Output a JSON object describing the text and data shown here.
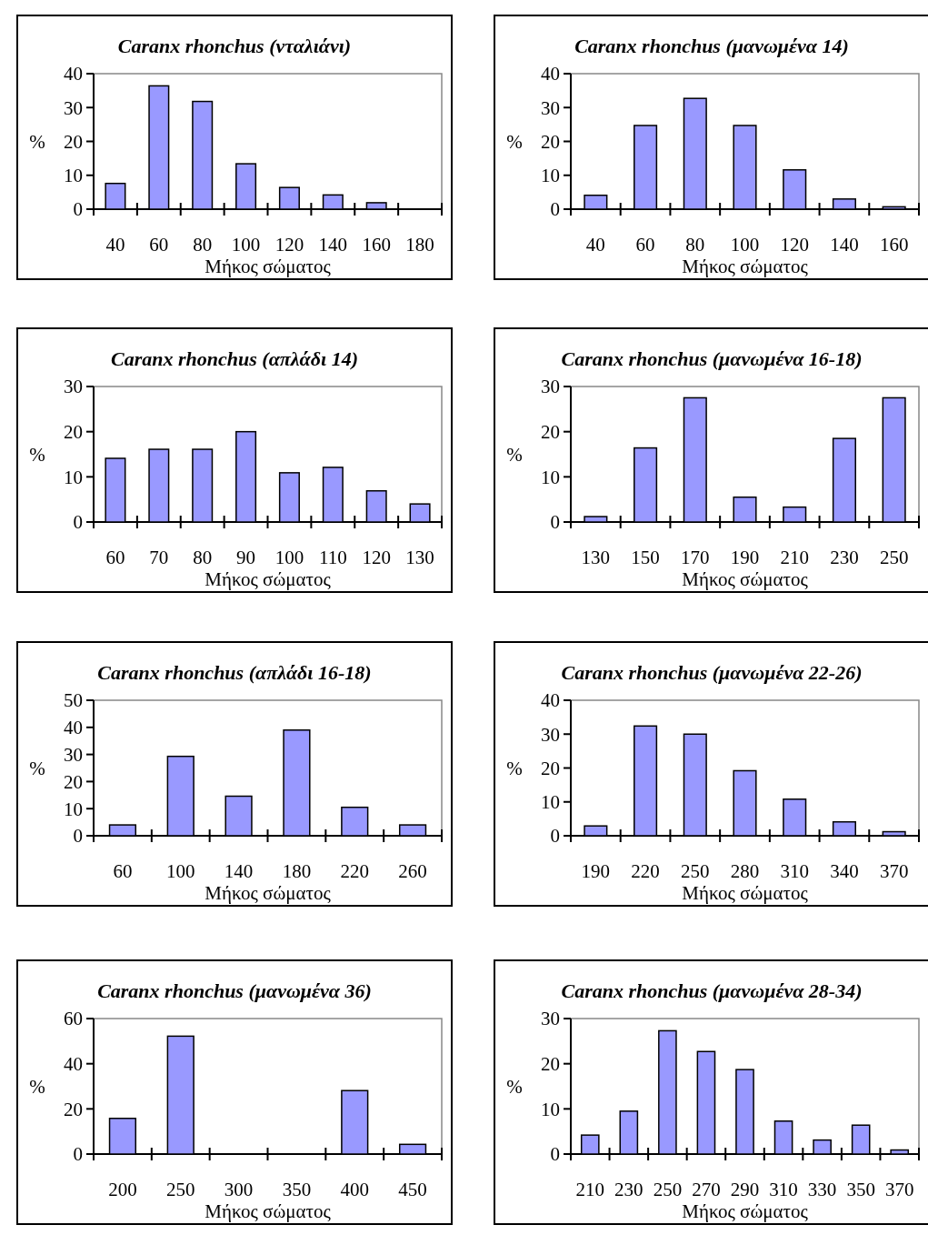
{
  "chart_data": [
    {
      "type": "bar",
      "title": "Caranx rhonchus (νταλιάνι)",
      "xlabel": "Μήκος σώματος",
      "ylabel": "%",
      "categories": [
        "40",
        "60",
        "80",
        "100",
        "120",
        "140",
        "160",
        "180"
      ],
      "values": [
        7.6,
        36.4,
        31.8,
        13.4,
        6.4,
        4.2,
        1.9,
        0
      ],
      "color": "#9999ff",
      "ylim": [
        0,
        40
      ],
      "yticks": [
        0,
        10,
        20,
        30,
        40
      ]
    },
    {
      "type": "bar",
      "title": "Caranx rhonchus (μανωμένα 14)",
      "xlabel": "Μήκος σώματος",
      "ylabel": "%",
      "categories": [
        "40",
        "60",
        "80",
        "100",
        "120",
        "140",
        "160"
      ],
      "values": [
        4.1,
        24.7,
        32.7,
        24.7,
        11.6,
        3.0,
        0.7
      ],
      "color": "#9999ff",
      "ylim": [
        0,
        40
      ],
      "yticks": [
        0,
        10,
        20,
        30,
        40
      ]
    },
    {
      "type": "bar",
      "title": "Caranx rhonchus (απλάδι 14)",
      "xlabel": "Μήκος σώματος",
      "ylabel": "%",
      "categories": [
        "60",
        "70",
        "80",
        "90",
        "100",
        "110",
        "120",
        "130"
      ],
      "values": [
        14.1,
        16.1,
        16.1,
        20,
        10.9,
        12.1,
        6.9,
        4.0
      ],
      "color": "#9999ff",
      "ylim": [
        0,
        30
      ],
      "yticks": [
        0,
        10,
        20,
        30
      ]
    },
    {
      "type": "bar",
      "title": "Caranx rhonchus (μανωμένα 16-18)",
      "xlabel": "Μήκος σώματος",
      "ylabel": "%",
      "categories": [
        "130",
        "150",
        "170",
        "190",
        "210",
        "230",
        "250"
      ],
      "values": [
        1.2,
        16.4,
        27.5,
        5.5,
        3.3,
        18.5,
        27.5
      ],
      "color": "#9999ff",
      "ylim": [
        0,
        30
      ],
      "yticks": [
        0,
        10,
        20,
        30
      ]
    },
    {
      "type": "bar",
      "title": "Caranx rhonchus (απλάδι 16-18)",
      "xlabel": "Μήκος σώματος",
      "ylabel": "%",
      "categories": [
        "60",
        "100",
        "140",
        "180",
        "220",
        "260"
      ],
      "values": [
        4.0,
        29.3,
        14.6,
        39.0,
        10.5,
        4.0
      ],
      "color": "#9999ff",
      "ylim": [
        0,
        50
      ],
      "yticks": [
        0,
        10,
        20,
        30,
        40,
        50
      ]
    },
    {
      "type": "bar",
      "title": "Caranx rhonchus (μανωμένα 22-26)",
      "xlabel": "Μήκος σώματος",
      "ylabel": "%",
      "categories": [
        "190",
        "220",
        "250",
        "280",
        "310",
        "340",
        "370"
      ],
      "values": [
        2.9,
        32.4,
        30.0,
        19.2,
        10.8,
        4.1,
        1.2
      ],
      "color": "#9999ff",
      "ylim": [
        0,
        40
      ],
      "yticks": [
        0,
        10,
        20,
        30,
        40
      ]
    },
    {
      "type": "bar",
      "title": "Caranx rhonchus (μανωμένα 36)",
      "xlabel": "Μήκος σώματος",
      "ylabel": "%",
      "categories": [
        "200",
        "250",
        "300",
        "350",
        "400",
        "450"
      ],
      "values": [
        15.8,
        52.2,
        0,
        0,
        28.1,
        4.3
      ],
      "color": "#9999ff",
      "ylim": [
        0,
        60
      ],
      "yticks": [
        0,
        20,
        40,
        60
      ]
    },
    {
      "type": "bar",
      "title": "Caranx rhonchus (μανωμένα 28-34)",
      "xlabel": "Μήκος σώματος",
      "ylabel": "%",
      "categories": [
        "210",
        "230",
        "250",
        "270",
        "290",
        "310",
        "330",
        "350",
        "370"
      ],
      "values": [
        4.2,
        9.5,
        27.3,
        22.7,
        18.7,
        7.3,
        3.1,
        6.4,
        0.9
      ],
      "color": "#9999ff",
      "ylim": [
        0,
        30
      ],
      "yticks": [
        0,
        10,
        20,
        30
      ]
    }
  ]
}
